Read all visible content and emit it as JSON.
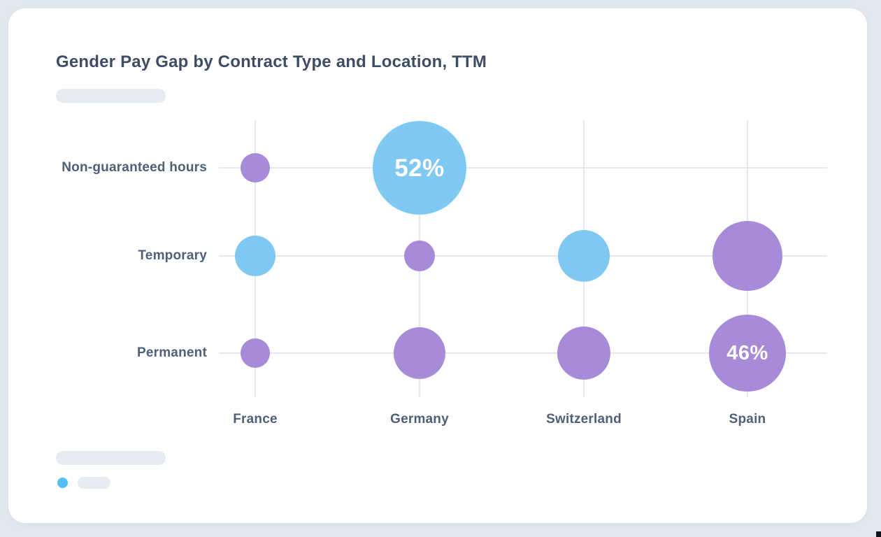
{
  "header": {
    "title": "Gender Pay Gap by Contract Type and Location, TTM"
  },
  "placeholders": {
    "subtitle_skeleton": "subtitle-placeholder",
    "footer_skeleton": "footer-placeholder",
    "legend_label_skeleton": "legend-label-placeholder"
  },
  "legend": {
    "marker_color": "#55BFF3"
  },
  "colors": {
    "page_background": "#E2E8F0",
    "card_background": "#FFFFFF",
    "title_text": "#3E4D66",
    "axis_text": "#4E5F77",
    "gridline": "#E4E6F1"
  },
  "chart_data": {
    "type": "bubble",
    "title": "Gender Pay Gap by Contract Type and Location, TTM",
    "x_categories": [
      "France",
      "Germany",
      "Switzerland",
      "Spain"
    ],
    "y_categories": [
      "Non-guaranteed hours",
      "Temporary",
      "Permanent"
    ],
    "legend_position": "bottom-left",
    "grid": true,
    "series_colors": {
      "blue": "#7FC8F2",
      "purple": "#A78BD8"
    },
    "points": [
      {
        "location": "France",
        "contract": "Non-guaranteed hours",
        "color": "purple",
        "radius_px": 21,
        "est_value_pct": 17,
        "label": ""
      },
      {
        "location": "Germany",
        "contract": "Non-guaranteed hours",
        "color": "blue",
        "radius_px": 67,
        "est_value_pct": 52,
        "label": "52%"
      },
      {
        "location": "France",
        "contract": "Temporary",
        "color": "blue",
        "radius_px": 29,
        "est_value_pct": 23,
        "label": ""
      },
      {
        "location": "Germany",
        "contract": "Temporary",
        "color": "purple",
        "radius_px": 22,
        "est_value_pct": 18,
        "label": ""
      },
      {
        "location": "Switzerland",
        "contract": "Temporary",
        "color": "blue",
        "radius_px": 37,
        "est_value_pct": 30,
        "label": ""
      },
      {
        "location": "Spain",
        "contract": "Temporary",
        "color": "purple",
        "radius_px": 50,
        "est_value_pct": 40,
        "label": ""
      },
      {
        "location": "France",
        "contract": "Permanent",
        "color": "purple",
        "radius_px": 21,
        "est_value_pct": 17,
        "label": ""
      },
      {
        "location": "Germany",
        "contract": "Permanent",
        "color": "purple",
        "radius_px": 37,
        "est_value_pct": 30,
        "label": ""
      },
      {
        "location": "Switzerland",
        "contract": "Permanent",
        "color": "purple",
        "radius_px": 38,
        "est_value_pct": 31,
        "label": ""
      },
      {
        "location": "Spain",
        "contract": "Permanent",
        "color": "purple",
        "radius_px": 55,
        "est_value_pct": 46,
        "label": "46%"
      }
    ]
  }
}
